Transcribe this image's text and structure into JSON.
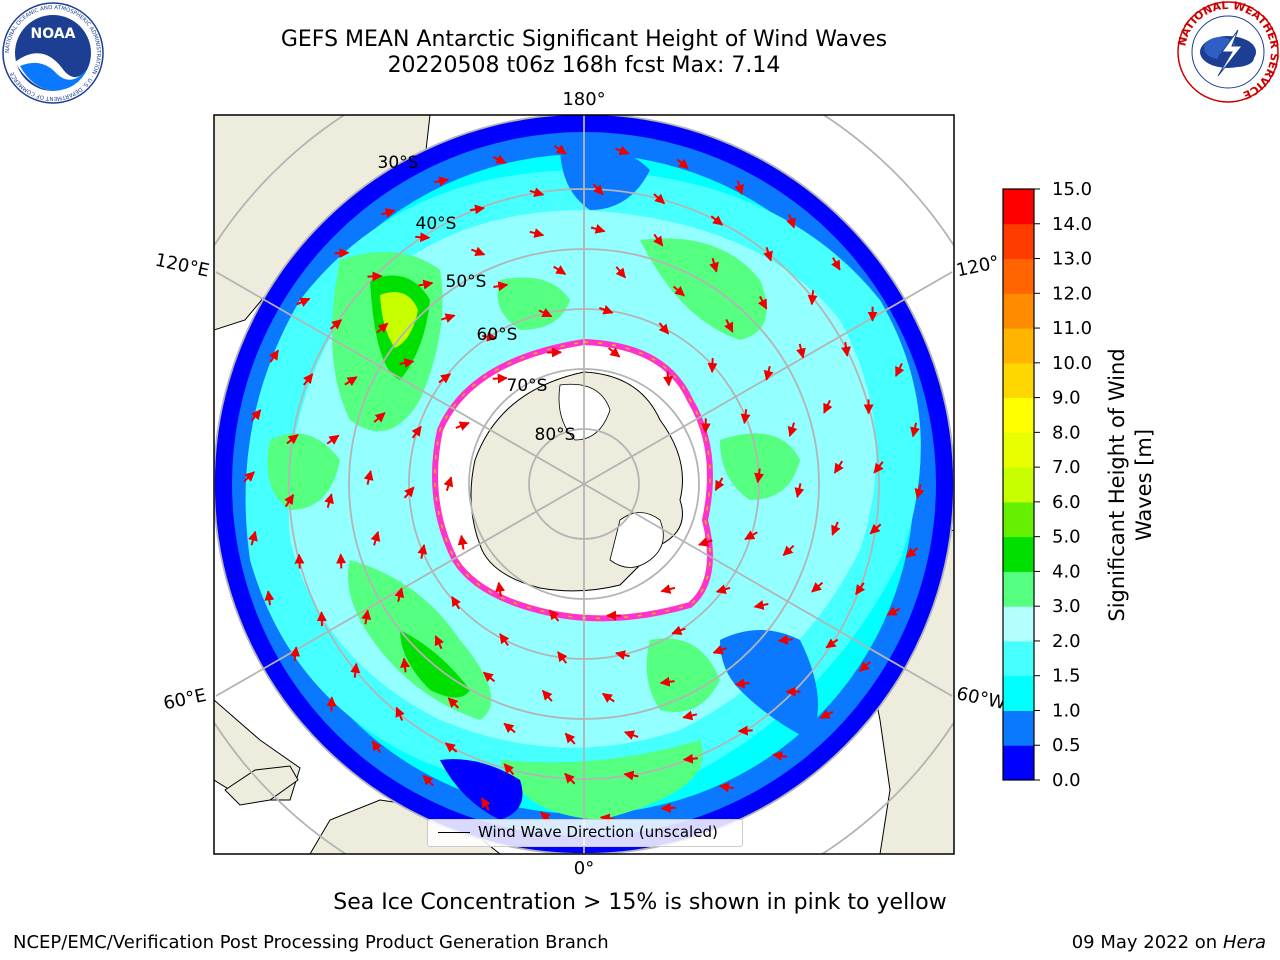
{
  "title": {
    "line1": "GEFS MEAN Antarctic Significant Height of Wind Waves",
    "line2": "20220508 t06z 168h fcst   Max: 7.14"
  },
  "logos": {
    "left": "noaa-logo",
    "left_text": "NOAA",
    "left_ring_text": "NATIONAL OCEANIC AND ATMOSPHERIC ADMINISTRATION · U.S. DEPARTMENT OF COMMERCE",
    "right": "nws-logo",
    "right_ring_text": "NATIONAL WEATHER SERVICE"
  },
  "map": {
    "projection": "south-polar-stereographic",
    "longitude_labels": {
      "top": "180°",
      "bottom": "0°",
      "upper_left": "120°E",
      "upper_right": "120°",
      "lower_left": "60°E",
      "lower_right": "60°W"
    },
    "latitude_labels": [
      "30°S",
      "40°S",
      "50°S",
      "60°S",
      "70°S",
      "80°S"
    ],
    "colors": {
      "land": "#eeecdc",
      "ice_edge": "#ff33cc",
      "ice_inner": "#ffb800",
      "arrow": "#ee0000",
      "grid": "#b4b4b4"
    },
    "legend_label": "Wind Wave Direction (unscaled)"
  },
  "colorbar": {
    "label": "Significant Height of Wind Waves [m]",
    "label_line1": "Significant Height of Wind",
    "label_line2": "Waves [m]",
    "ticks": [
      "0.0",
      "0.5",
      "1.0",
      "1.5",
      "2.0",
      "3.0",
      "4.0",
      "5.0",
      "6.0",
      "7.0",
      "8.0",
      "9.0",
      "10.0",
      "11.0",
      "12.0",
      "13.0",
      "14.0",
      "15.0"
    ],
    "colors": [
      "#0000ff",
      "#0a78ff",
      "#00ffff",
      "#46ffff",
      "#b4ffff",
      "#55ff80",
      "#00e000",
      "#64f000",
      "#c8ff00",
      "#e8ff00",
      "#ffff00",
      "#ffd700",
      "#ffb400",
      "#ff8c00",
      "#ff6400",
      "#ff3c00",
      "#ff0000"
    ]
  },
  "footer": {
    "note": "Sea Ice Concentration > 15% is shown in pink to yellow",
    "left": "NCEP/EMC/Verification Post Processing Product Generation Branch",
    "right_date": "09 May 2022 on",
    "right_host": "Hera"
  }
}
